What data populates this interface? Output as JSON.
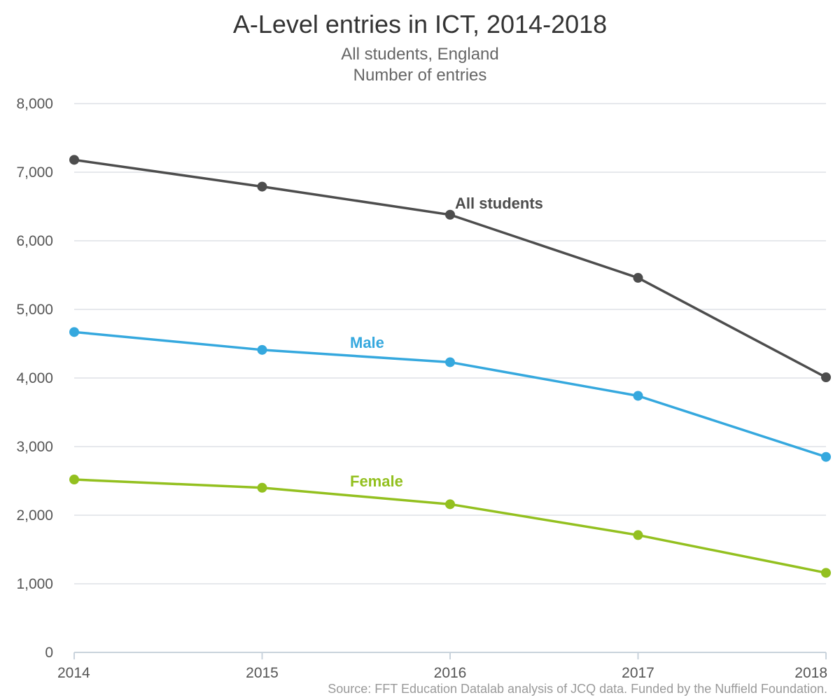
{
  "chart_data": {
    "type": "line",
    "title": "A-Level entries in ICT, 2014-2018",
    "subtitle_lines": [
      "All students, England",
      "Number of entries"
    ],
    "source": "Source: FFT Education Datalab analysis of JCQ data. Funded by the Nuffield Foundation.",
    "xlabel": "",
    "ylabel": "",
    "categories": [
      "2014",
      "2015",
      "2016",
      "2017",
      "2018"
    ],
    "ylim": [
      0,
      8000
    ],
    "yticks": [
      0,
      1000,
      2000,
      3000,
      4000,
      5000,
      6000,
      7000,
      8000
    ],
    "ytick_labels": [
      "0",
      "1,000",
      "2,000",
      "3,000",
      "4,000",
      "5,000",
      "6,000",
      "7,000",
      "8,000"
    ],
    "grid": "horizontal",
    "series": [
      {
        "name": "All students",
        "color": "#4d4d4d",
        "values": [
          7180,
          6790,
          6380,
          5460,
          4010
        ]
      },
      {
        "name": "Male",
        "color": "#35a8de",
        "values": [
          4670,
          4410,
          4230,
          3740,
          2850
        ]
      },
      {
        "name": "Female",
        "color": "#93c01f",
        "values": [
          2520,
          2400,
          2160,
          1710,
          1160
        ]
      }
    ]
  }
}
